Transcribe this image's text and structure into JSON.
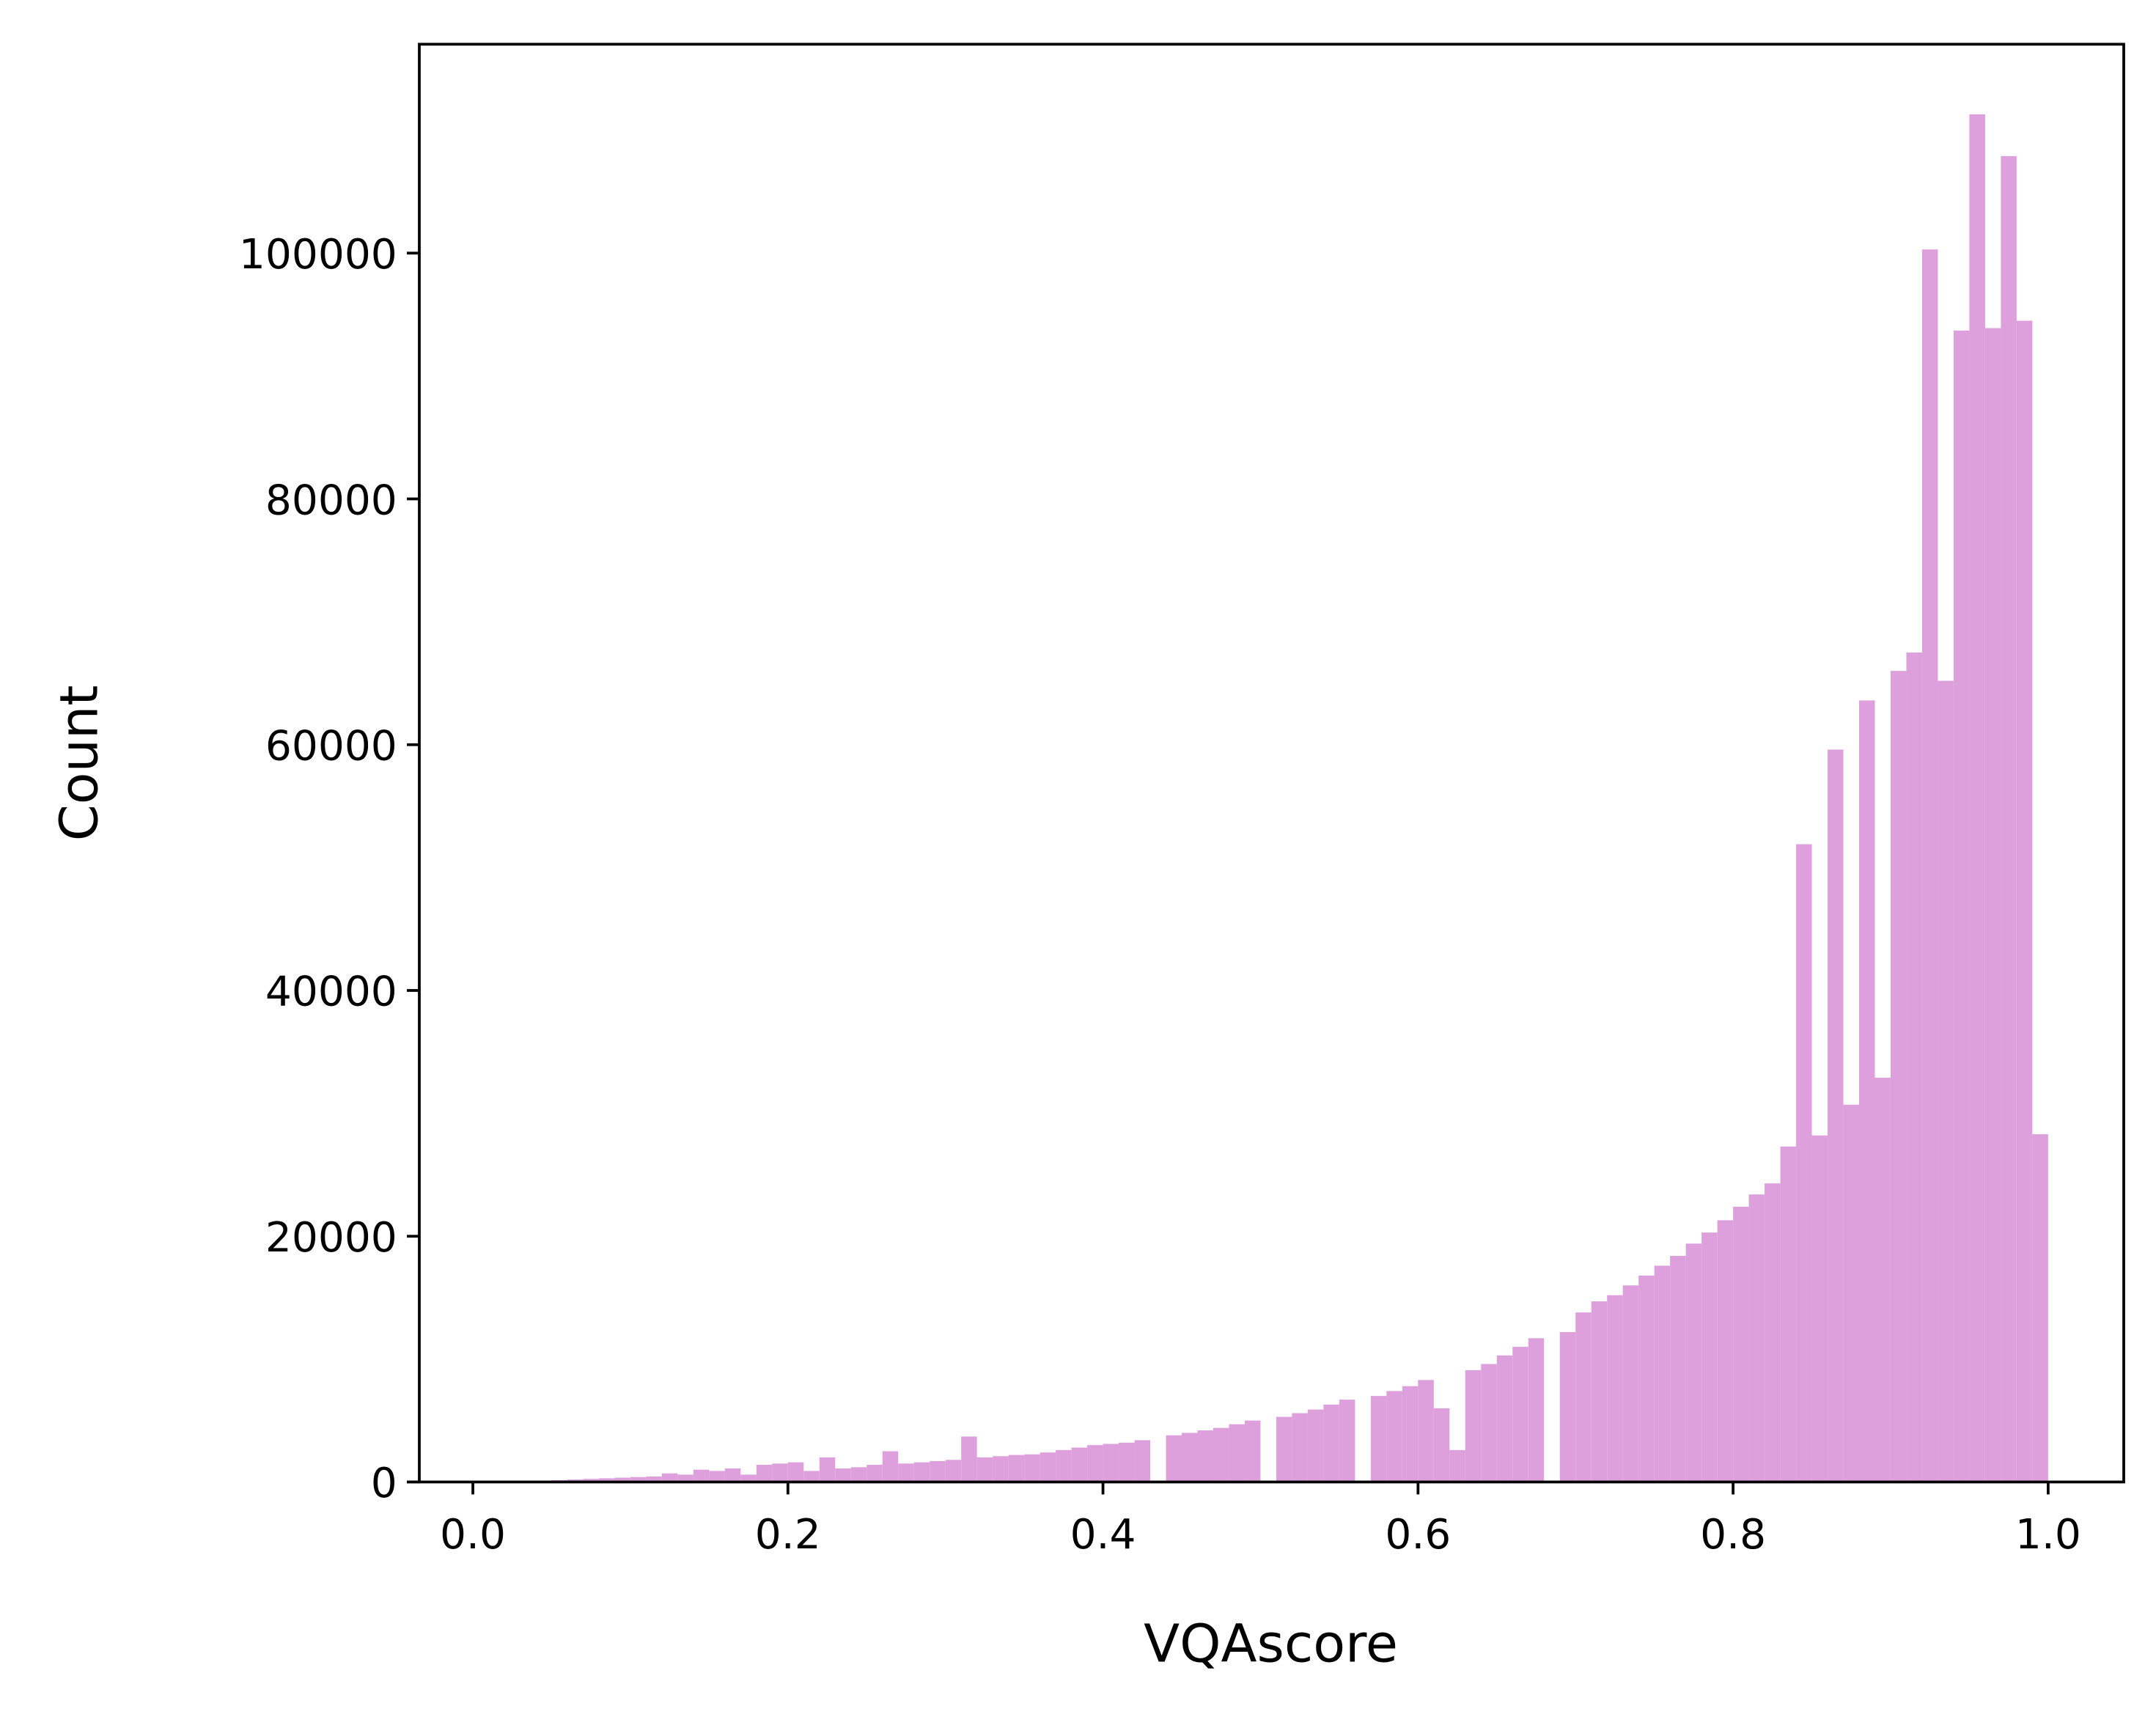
{
  "chart_data": {
    "type": "histogram",
    "xlabel": "VQAscore",
    "ylabel": "Count",
    "color": "#dda0dd",
    "bins": [
      0.0,
      0.01,
      0.02,
      0.03,
      0.04,
      0.05,
      0.06,
      0.07,
      0.08,
      0.09,
      0.1,
      0.11,
      0.12,
      0.13,
      0.14,
      0.15,
      0.16,
      0.17,
      0.18,
      0.19,
      0.2,
      0.21,
      0.22,
      0.23,
      0.24,
      0.25,
      0.26,
      0.27,
      0.28,
      0.29,
      0.3,
      0.31,
      0.32,
      0.33,
      0.34,
      0.35,
      0.36,
      0.37,
      0.38,
      0.39,
      0.4,
      0.41,
      0.42,
      0.43,
      0.44,
      0.45,
      0.46,
      0.47,
      0.48,
      0.49,
      0.5,
      0.51,
      0.52,
      0.53,
      0.54,
      0.55,
      0.56,
      0.57,
      0.58,
      0.59,
      0.6,
      0.61,
      0.62,
      0.63,
      0.64,
      0.65,
      0.66,
      0.67,
      0.68,
      0.69,
      0.7,
      0.71,
      0.72,
      0.73,
      0.74,
      0.75,
      0.76,
      0.77,
      0.78,
      0.79,
      0.8,
      0.81,
      0.82,
      0.83,
      0.84,
      0.85,
      0.86,
      0.87,
      0.88,
      0.89,
      0.9,
      0.91,
      0.92,
      0.93,
      0.94,
      0.95,
      0.96,
      0.97,
      0.98,
      0.99,
      1.0
    ],
    "values": [
      10,
      20,
      40,
      60,
      100,
      150,
      200,
      250,
      300,
      350,
      400,
      450,
      700,
      600,
      1000,
      900,
      1100,
      600,
      1400,
      1500,
      1600,
      900,
      2000,
      1100,
      1200,
      1400,
      2500,
      1500,
      1600,
      1700,
      1800,
      3700,
      2000,
      2100,
      2200,
      2250,
      2400,
      2600,
      2800,
      3000,
      3100,
      3200,
      3400,
      0,
      3800,
      4000,
      4200,
      4400,
      4700,
      5000,
      0,
      5300,
      5600,
      5900,
      6300,
      6700,
      0,
      7000,
      7400,
      7800,
      8300,
      6000,
      2600,
      9100,
      9600,
      10300,
      11000,
      11700,
      0,
      12200,
      13800,
      14700,
      15200,
      16000,
      16800,
      17600,
      18400,
      19400,
      20300,
      21300,
      22400,
      23400,
      24300,
      27300,
      51900,
      28200,
      59600,
      30700,
      63600,
      32900,
      66000,
      67500,
      100300,
      65200,
      93700,
      111300,
      93900,
      107900,
      94500,
      28300
    ],
    "xlim": [
      -0.034,
      1.048
    ],
    "ylim": [
      0,
      117000
    ],
    "xticks": [
      {
        "value": 0.0,
        "label": "0.0"
      },
      0.2,
      0.4,
      0.6,
      0.8,
      {
        "value": 1.0,
        "label": "1.0"
      }
    ],
    "yticks": [
      0,
      20000,
      40000,
      60000,
      80000,
      100000
    ]
  }
}
